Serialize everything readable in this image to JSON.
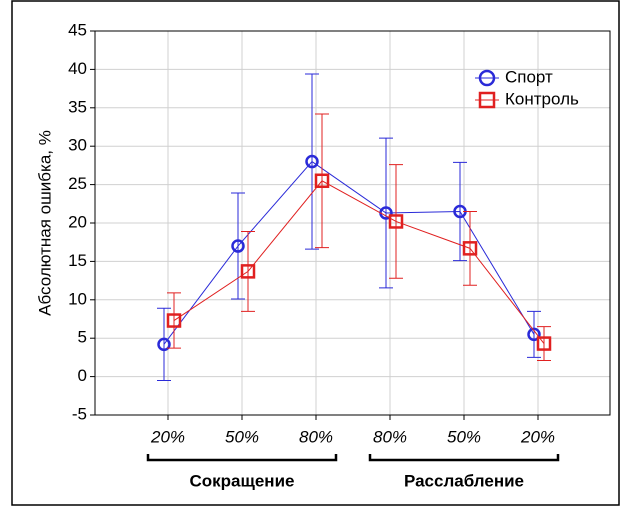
{
  "chart_data": {
    "type": "line",
    "y_label": "Абсолютная ошибка, %",
    "categories": [
      "20%",
      "50%",
      "80%",
      "80%",
      "50%",
      "20%"
    ],
    "groups": [
      "Сокращение",
      "Расслабление"
    ],
    "series": [
      {
        "name": "Спорт",
        "color": "#2a2ad8",
        "marker": "circle",
        "values": [
          4.2,
          17.0,
          28.0,
          21.3,
          21.5,
          5.5
        ],
        "errors": [
          4.7,
          6.9,
          11.4,
          9.75,
          6.4,
          3.0
        ]
      },
      {
        "name": "Контроль",
        "color": "#e02020",
        "marker": "square",
        "values": [
          7.3,
          13.7,
          25.5,
          20.2,
          16.7,
          4.3
        ],
        "errors": [
          3.6,
          5.2,
          8.7,
          7.4,
          4.8,
          2.2
        ]
      }
    ],
    "ylim": [
      -5,
      45
    ],
    "yticks": [
      -5,
      0,
      5,
      10,
      15,
      20,
      25,
      30,
      35,
      40,
      45
    ],
    "grid": true,
    "legend": "upper right"
  }
}
